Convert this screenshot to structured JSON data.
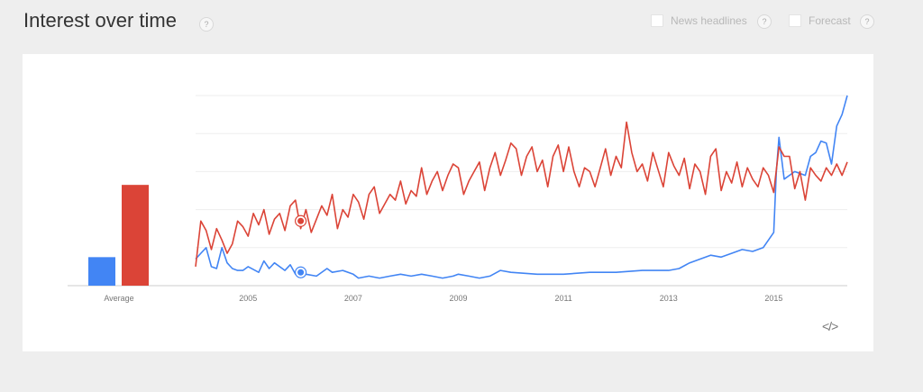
{
  "header": {
    "title": "Interest over time",
    "help_glyph": "?",
    "options": [
      {
        "label": "News headlines",
        "checked": false
      },
      {
        "label": "Forecast",
        "checked": false
      }
    ],
    "embed_label": "</>"
  },
  "colors": {
    "blue": "#4285f4",
    "red": "#db4437",
    "grid": "#eeeeee"
  },
  "chart_data": {
    "type": "line",
    "title": "",
    "xlabel": "",
    "ylabel": "",
    "ylim": [
      0,
      100
    ],
    "xlim": [
      2004.0,
      2016.4
    ],
    "x_ticks": [
      "2005",
      "2007",
      "2009",
      "2011",
      "2013",
      "2015"
    ],
    "average": {
      "label": "Average",
      "values": [
        {
          "series": "blue",
          "value": 15
        },
        {
          "series": "red",
          "value": 53
        }
      ]
    },
    "series": [
      {
        "color": "#4285f4",
        "marker": {
          "x": 2006.0,
          "y": 7
        },
        "points": [
          [
            2004.0,
            14
          ],
          [
            2004.1,
            17
          ],
          [
            2004.2,
            20
          ],
          [
            2004.3,
            10
          ],
          [
            2004.4,
            9
          ],
          [
            2004.5,
            20
          ],
          [
            2004.6,
            12
          ],
          [
            2004.7,
            9
          ],
          [
            2004.8,
            8
          ],
          [
            2004.9,
            8
          ],
          [
            2005.0,
            10
          ],
          [
            2005.2,
            7
          ],
          [
            2005.3,
            13
          ],
          [
            2005.4,
            9
          ],
          [
            2005.5,
            12
          ],
          [
            2005.7,
            8
          ],
          [
            2005.8,
            11
          ],
          [
            2005.9,
            6
          ],
          [
            2006.0,
            7
          ],
          [
            2006.1,
            6
          ],
          [
            2006.3,
            5
          ],
          [
            2006.5,
            9
          ],
          [
            2006.6,
            7
          ],
          [
            2006.8,
            8
          ],
          [
            2007.0,
            6
          ],
          [
            2007.1,
            4
          ],
          [
            2007.3,
            5
          ],
          [
            2007.5,
            4
          ],
          [
            2007.7,
            5
          ],
          [
            2007.9,
            6
          ],
          [
            2008.1,
            5
          ],
          [
            2008.3,
            6
          ],
          [
            2008.5,
            5
          ],
          [
            2008.7,
            4
          ],
          [
            2008.9,
            5
          ],
          [
            2009.0,
            6
          ],
          [
            2009.2,
            5
          ],
          [
            2009.4,
            4
          ],
          [
            2009.6,
            5
          ],
          [
            2009.8,
            8
          ],
          [
            2010.0,
            7
          ],
          [
            2010.5,
            6
          ],
          [
            2011.0,
            6
          ],
          [
            2011.5,
            7
          ],
          [
            2012.0,
            7
          ],
          [
            2012.5,
            8
          ],
          [
            2013.0,
            8
          ],
          [
            2013.2,
            9
          ],
          [
            2013.4,
            12
          ],
          [
            2013.6,
            14
          ],
          [
            2013.8,
            16
          ],
          [
            2014.0,
            15
          ],
          [
            2014.2,
            17
          ],
          [
            2014.4,
            19
          ],
          [
            2014.6,
            18
          ],
          [
            2014.8,
            20
          ],
          [
            2014.9,
            24
          ],
          [
            2015.0,
            28
          ],
          [
            2015.05,
            60
          ],
          [
            2015.1,
            78
          ],
          [
            2015.2,
            56
          ],
          [
            2015.4,
            60
          ],
          [
            2015.6,
            58
          ],
          [
            2015.7,
            68
          ],
          [
            2015.8,
            70
          ],
          [
            2015.9,
            76
          ],
          [
            2016.0,
            75
          ],
          [
            2016.1,
            64
          ],
          [
            2016.2,
            84
          ],
          [
            2016.3,
            90
          ],
          [
            2016.4,
            100
          ]
        ]
      },
      {
        "color": "#db4437",
        "marker": {
          "x": 2006.0,
          "y": 34
        },
        "points": [
          [
            2004.0,
            10
          ],
          [
            2004.1,
            34
          ],
          [
            2004.2,
            29
          ],
          [
            2004.3,
            19
          ],
          [
            2004.4,
            30
          ],
          [
            2004.5,
            24
          ],
          [
            2004.6,
            17
          ],
          [
            2004.7,
            22
          ],
          [
            2004.8,
            34
          ],
          [
            2004.9,
            31
          ],
          [
            2005.0,
            26
          ],
          [
            2005.1,
            38
          ],
          [
            2005.2,
            32
          ],
          [
            2005.3,
            40
          ],
          [
            2005.4,
            27
          ],
          [
            2005.5,
            35
          ],
          [
            2005.6,
            38
          ],
          [
            2005.7,
            29
          ],
          [
            2005.8,
            42
          ],
          [
            2005.9,
            45
          ],
          [
            2006.0,
            30
          ],
          [
            2006.1,
            40
          ],
          [
            2006.2,
            28
          ],
          [
            2006.3,
            35
          ],
          [
            2006.4,
            42
          ],
          [
            2006.5,
            37
          ],
          [
            2006.6,
            48
          ],
          [
            2006.7,
            30
          ],
          [
            2006.8,
            40
          ],
          [
            2006.9,
            36
          ],
          [
            2007.0,
            48
          ],
          [
            2007.1,
            44
          ],
          [
            2007.2,
            35
          ],
          [
            2007.3,
            48
          ],
          [
            2007.4,
            52
          ],
          [
            2007.5,
            38
          ],
          [
            2007.6,
            43
          ],
          [
            2007.7,
            48
          ],
          [
            2007.8,
            45
          ],
          [
            2007.9,
            55
          ],
          [
            2008.0,
            43
          ],
          [
            2008.1,
            50
          ],
          [
            2008.2,
            47
          ],
          [
            2008.3,
            62
          ],
          [
            2008.4,
            48
          ],
          [
            2008.5,
            55
          ],
          [
            2008.6,
            60
          ],
          [
            2008.7,
            50
          ],
          [
            2008.8,
            58
          ],
          [
            2008.9,
            64
          ],
          [
            2009.0,
            62
          ],
          [
            2009.1,
            48
          ],
          [
            2009.2,
            55
          ],
          [
            2009.3,
            60
          ],
          [
            2009.4,
            65
          ],
          [
            2009.5,
            50
          ],
          [
            2009.6,
            62
          ],
          [
            2009.7,
            70
          ],
          [
            2009.8,
            58
          ],
          [
            2009.9,
            66
          ],
          [
            2010.0,
            75
          ],
          [
            2010.1,
            72
          ],
          [
            2010.2,
            58
          ],
          [
            2010.3,
            68
          ],
          [
            2010.4,
            73
          ],
          [
            2010.5,
            60
          ],
          [
            2010.6,
            66
          ],
          [
            2010.7,
            52
          ],
          [
            2010.8,
            68
          ],
          [
            2010.9,
            74
          ],
          [
            2011.0,
            60
          ],
          [
            2011.1,
            73
          ],
          [
            2011.2,
            60
          ],
          [
            2011.3,
            52
          ],
          [
            2011.4,
            62
          ],
          [
            2011.5,
            60
          ],
          [
            2011.6,
            52
          ],
          [
            2011.7,
            62
          ],
          [
            2011.8,
            72
          ],
          [
            2011.9,
            58
          ],
          [
            2012.0,
            68
          ],
          [
            2012.1,
            62
          ],
          [
            2012.2,
            86
          ],
          [
            2012.3,
            70
          ],
          [
            2012.4,
            60
          ],
          [
            2012.5,
            64
          ],
          [
            2012.6,
            55
          ],
          [
            2012.7,
            70
          ],
          [
            2012.8,
            61
          ],
          [
            2012.9,
            52
          ],
          [
            2013.0,
            70
          ],
          [
            2013.1,
            63
          ],
          [
            2013.2,
            58
          ],
          [
            2013.3,
            67
          ],
          [
            2013.4,
            51
          ],
          [
            2013.5,
            64
          ],
          [
            2013.6,
            60
          ],
          [
            2013.7,
            48
          ],
          [
            2013.8,
            68
          ],
          [
            2013.9,
            72
          ],
          [
            2014.0,
            50
          ],
          [
            2014.1,
            60
          ],
          [
            2014.2,
            54
          ],
          [
            2014.3,
            65
          ],
          [
            2014.4,
            52
          ],
          [
            2014.5,
            62
          ],
          [
            2014.6,
            56
          ],
          [
            2014.7,
            52
          ],
          [
            2014.8,
            62
          ],
          [
            2014.9,
            58
          ],
          [
            2015.0,
            49
          ],
          [
            2015.1,
            73
          ],
          [
            2015.2,
            68
          ],
          [
            2015.3,
            68
          ],
          [
            2015.4,
            51
          ],
          [
            2015.5,
            60
          ],
          [
            2015.6,
            45
          ],
          [
            2015.7,
            62
          ],
          [
            2015.8,
            58
          ],
          [
            2015.9,
            55
          ],
          [
            2016.0,
            62
          ],
          [
            2016.1,
            58
          ],
          [
            2016.2,
            64
          ],
          [
            2016.3,
            58
          ],
          [
            2016.4,
            65
          ]
        ]
      }
    ]
  }
}
